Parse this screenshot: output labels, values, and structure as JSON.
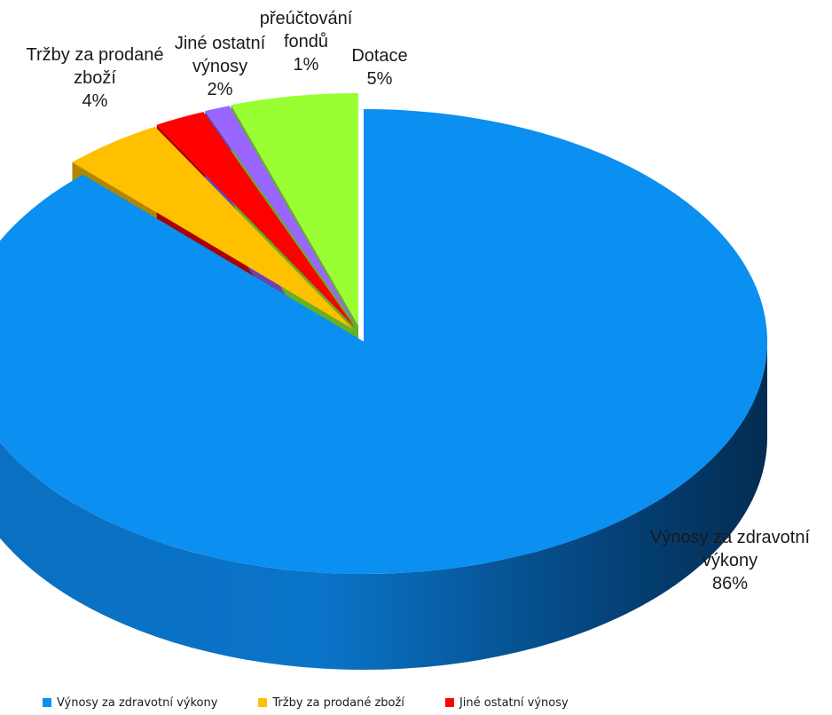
{
  "chart_data": {
    "type": "pie",
    "title": "",
    "style": "3d-exploded",
    "slices": [
      {
        "label_lines": [
          "Výnosy za zdravotní",
          "výkony"
        ],
        "pct_label": "86%",
        "value": 86,
        "color": "#0b8ff0"
      },
      {
        "label_lines": [
          "Tržby za prodané",
          "zboží"
        ],
        "pct_label": "4%",
        "value": 4,
        "color": "#ffc000"
      },
      {
        "label_lines": [
          "Jiné ostatní",
          "výnosy"
        ],
        "pct_label": "2%",
        "value": 2,
        "color": "#ff0000"
      },
      {
        "label_lines": [
          "přeúčtování",
          "fondů"
        ],
        "pct_label": "1%",
        "value": 1,
        "color": "#9966ff"
      },
      {
        "label_lines": [
          "Dotace"
        ],
        "pct_label": "5%",
        "value": 5,
        "color": "#99ff33"
      }
    ],
    "legend": {
      "placement": "bottom",
      "entries": [
        "Výnosy za zdravotní výkony",
        "Tržby za prodané zboží",
        "Jiné ostatní výnosy"
      ]
    }
  }
}
